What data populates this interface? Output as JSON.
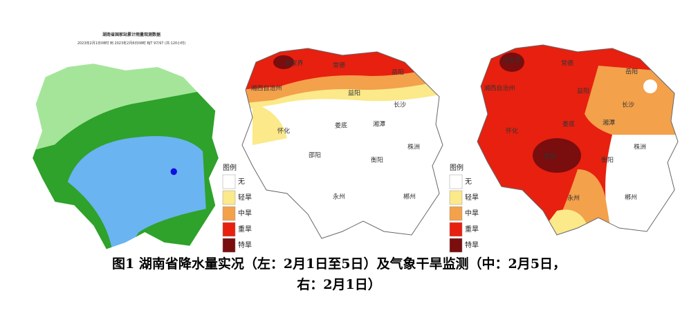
{
  "left_map": {
    "title": "湖南省国家站累计雨量观测数据",
    "subtitle": "2023年2月1日08时 到 2023年2月6日08时 BJT 97/97 (共:120小时)"
  },
  "cities": [
    "张家界",
    "常德",
    "岳阳",
    "湘西自治州",
    "益阳",
    "长沙",
    "怀化",
    "娄底",
    "湘潭",
    "邵阳",
    "株洲",
    "衡阳",
    "永州",
    "郴州"
  ],
  "legend": {
    "title": "图例",
    "items": [
      {
        "label": "无",
        "color": "#ffffff"
      },
      {
        "label": "轻旱",
        "color": "#fbe98a"
      },
      {
        "label": "中旱",
        "color": "#f3a14b"
      },
      {
        "label": "重旱",
        "color": "#e8200f"
      },
      {
        "label": "特旱",
        "color": "#7a0d0d"
      }
    ]
  },
  "caption": {
    "lines": [
      "图1 湖南省降水量实况（左：2月1日至5日）及气象干旱监测（中：2月5日，",
      "右：2月1日）"
    ]
  }
}
